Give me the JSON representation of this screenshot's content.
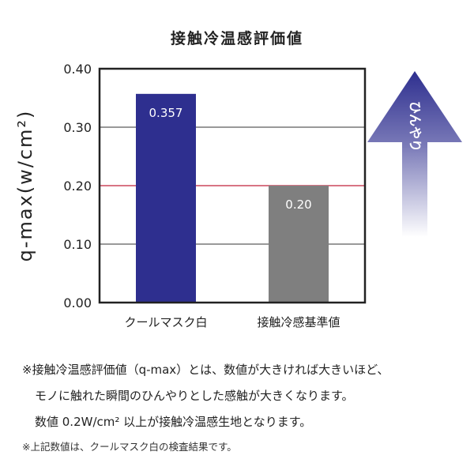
{
  "chart_data": {
    "type": "bar",
    "title": "接触冷温感評価値",
    "ylabel": "q-max(w/cm²)",
    "categories": [
      "クールマスク白",
      "接触冷感基準値"
    ],
    "values": [
      0.357,
      0.2
    ],
    "data_labels": [
      "0.357",
      "0.20"
    ],
    "bar_colors": [
      "#2e2f8f",
      "#7f7f7f"
    ],
    "ylim": [
      0,
      0.4
    ],
    "yticks": [
      "0.00",
      "0.10",
      "0.20",
      "0.30",
      "0.40"
    ],
    "grid": true,
    "reference_line": {
      "value": 0.2,
      "color": "#c0203a"
    }
  },
  "arrow": {
    "label": "ひんやり",
    "color": "#2e2f8f"
  },
  "notes": {
    "line1": "※接触冷温感評価値（q-max）とは、数値が大きければ大きいほど、",
    "line2": "モノに触れた瞬間のひんやりとした感触が大きくなります。",
    "line3": "数値 0.2W/cm² 以上が接触冷温感生地となります。",
    "footnote": "※上記数値は、クールマスク白の検査結果です。"
  }
}
